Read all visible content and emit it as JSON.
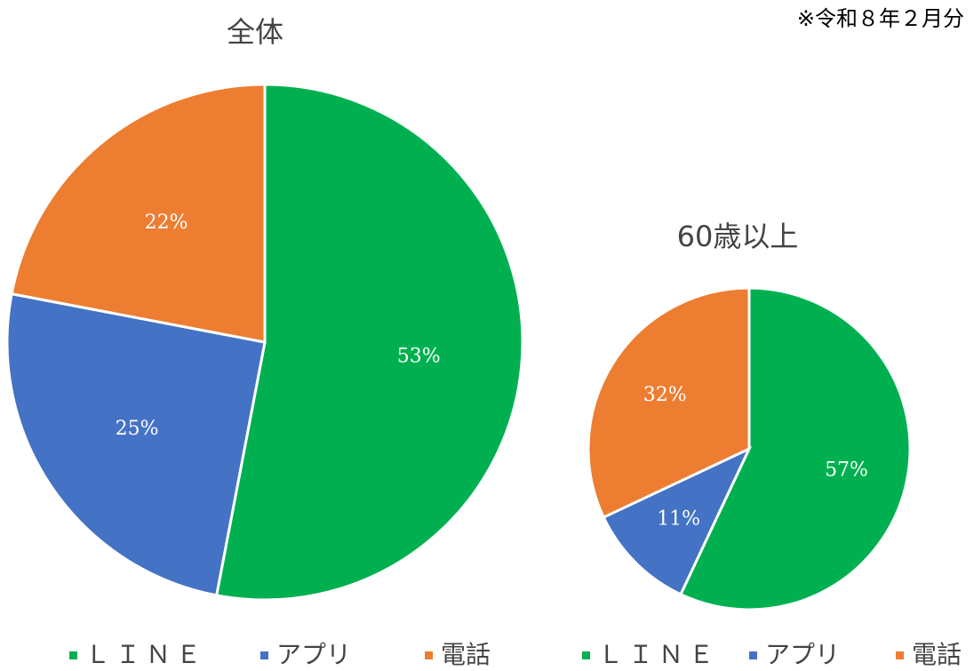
{
  "note": "※令和８年２月分",
  "chart_data": [
    {
      "type": "pie",
      "title": "全体",
      "categories": [
        "ＬＩＮＥ",
        "アプリ",
        "電話"
      ],
      "values": [
        53,
        25,
        22
      ],
      "value_labels": [
        "53%",
        "25%",
        "22%"
      ],
      "colors": [
        "#00b050",
        "#4472c4",
        "#ed7d31"
      ]
    },
    {
      "type": "pie",
      "title": "60歳以上",
      "categories": [
        "ＬＩＮＥ",
        "アプリ",
        "電話"
      ],
      "values": [
        57,
        11,
        32
      ],
      "value_labels": [
        "57%",
        "11%",
        "32%"
      ],
      "colors": [
        "#00b050",
        "#4472c4",
        "#ed7d31"
      ]
    }
  ]
}
